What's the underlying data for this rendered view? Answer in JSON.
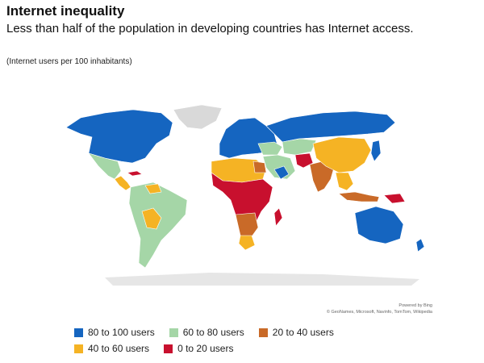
{
  "header": {
    "title": "Internet inequality",
    "subtitle": "Less than half of the population in developing countries has Internet access.",
    "note": "(Internet users per 100 inhabitants)"
  },
  "attribution": {
    "line1": "Powered by Bing",
    "line2": "© GeoNames, Microsoft, Navinfo, TomTom, Wikipedia"
  },
  "legend": [
    {
      "label": "80 to 100 users",
      "color": "#1565c0"
    },
    {
      "label": "60 to 80 users",
      "color": "#a5d6a7"
    },
    {
      "label": "20 to 40 users",
      "color": "#c96a28"
    },
    {
      "label": "40 to 60 users",
      "color": "#f5b324"
    },
    {
      "label": "0 to 20 users",
      "color": "#c8102e"
    }
  ],
  "colors": {
    "no_data": "#d9d9d9",
    "border": "#ffffff"
  }
}
